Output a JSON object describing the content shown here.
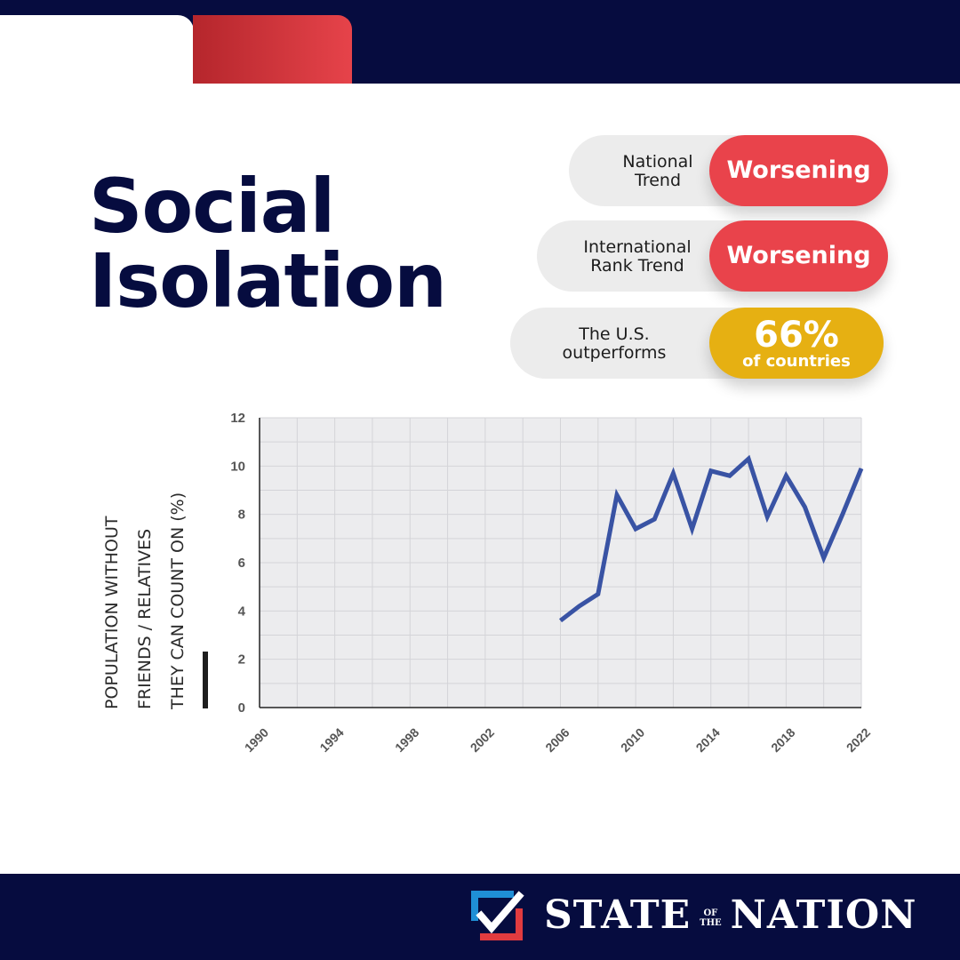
{
  "title": {
    "line1": "Social",
    "line2": "Isolation"
  },
  "indicators": [
    {
      "label_line1": "National",
      "label_line2": "Trend",
      "value": "Worsening",
      "color": "#e9434b"
    },
    {
      "label_line1": "International",
      "label_line2": "Rank Trend",
      "value": "Worsening",
      "color": "#e9434b"
    },
    {
      "label_line1": "The U.S.",
      "label_line2": "outperforms",
      "value_big": "66%",
      "value_small": "of countries",
      "color": "#e6b012"
    }
  ],
  "chart_data": {
    "type": "line",
    "ylabel_lines": [
      "POPULATION WITHOUT",
      "FRIENDS / RELATIVES",
      "THEY CAN COUNT ON (%)"
    ],
    "xlabel": "",
    "xlim": [
      1990,
      2022
    ],
    "ylim": [
      0,
      12
    ],
    "x_ticks": [
      "1990",
      "1994",
      "1998",
      "2002",
      "2006",
      "2010",
      "2014",
      "2018",
      "2022"
    ],
    "y_ticks": [
      "0",
      "2",
      "4",
      "6",
      "8",
      "10",
      "12"
    ],
    "grid": true,
    "series": [
      {
        "color": "#3953a4",
        "x": [
          2006,
          2007,
          2008,
          2009,
          2010,
          2011,
          2012,
          2013,
          2014,
          2015,
          2016,
          2017,
          2018,
          2019,
          2020,
          2021,
          2022
        ],
        "values": [
          3.6,
          4.2,
          4.7,
          8.8,
          7.4,
          7.8,
          9.7,
          7.4,
          9.8,
          9.6,
          10.3,
          7.9,
          9.6,
          8.3,
          6.2,
          8.0,
          9.9
        ]
      }
    ]
  },
  "footer": {
    "logo_word1": "STATE",
    "logo_small1": "OF",
    "logo_small2": "THE",
    "logo_word2": "NATION",
    "logo_colors": {
      "blue": "#1f8fd6",
      "red": "#e13b3f",
      "white": "#ffffff"
    }
  }
}
